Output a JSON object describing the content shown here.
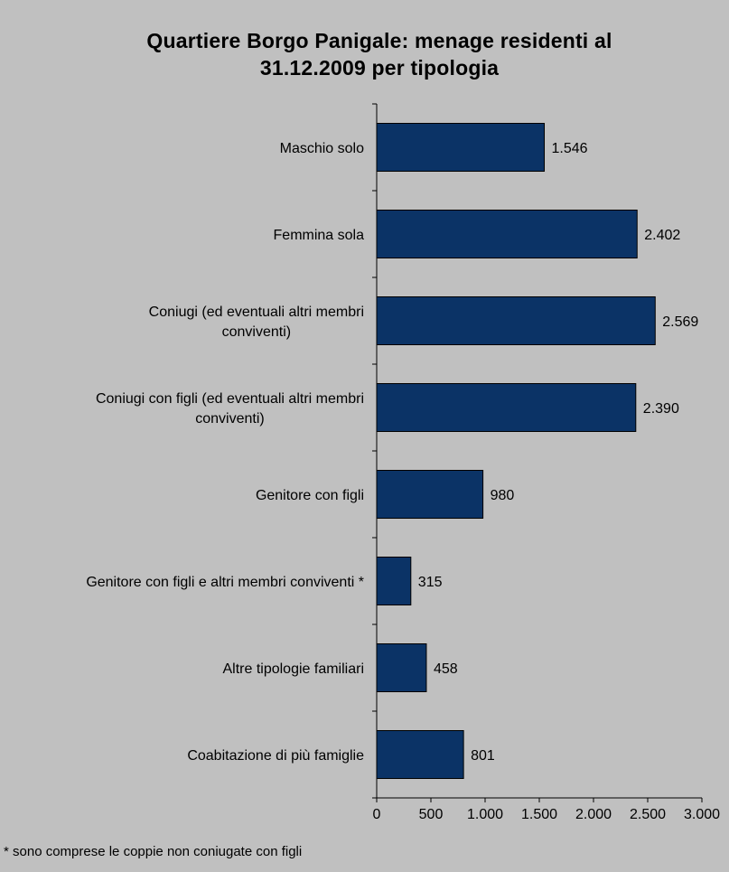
{
  "title_line1": "Quartiere Borgo Panigale: menage residenti al",
  "title_line2": "31.12.2009 per tipologia",
  "footnote": "* sono comprese le coppie non coniugate con figli",
  "colors": {
    "background": "#c0c0c0",
    "bar_fill": "#0b3366",
    "bar_stroke": "#000000"
  },
  "chart_data": {
    "type": "bar",
    "orientation": "horizontal",
    "title": "Quartiere Borgo Panigale: menage residenti al 31.12.2009 per tipologia",
    "categories": [
      [
        "Maschio solo"
      ],
      [
        "Femmina sola"
      ],
      [
        "Coniugi (ed eventuali altri membri",
        "conviventi)"
      ],
      [
        "Coniugi con figli (ed eventuali altri membri",
        "conviventi)"
      ],
      [
        "Genitore con figli"
      ],
      [
        "Genitore con figli e altri membri conviventi *"
      ],
      [
        "Altre tipologie familiari"
      ],
      [
        "Coabitazione di più famiglie"
      ]
    ],
    "values": [
      1546,
      2402,
      2569,
      2390,
      980,
      315,
      458,
      801
    ],
    "value_labels": [
      "1.546",
      "2.402",
      "2.569",
      "2.390",
      "980",
      "315",
      "458",
      "801"
    ],
    "xlim": [
      0,
      3000
    ],
    "ticks": [
      0,
      500,
      1000,
      1500,
      2000,
      2500,
      3000
    ],
    "tick_labels": [
      "0",
      "500",
      "1.000",
      "1.500",
      "2.000",
      "2.500",
      "3.000"
    ],
    "grid": false,
    "legend": "none"
  }
}
